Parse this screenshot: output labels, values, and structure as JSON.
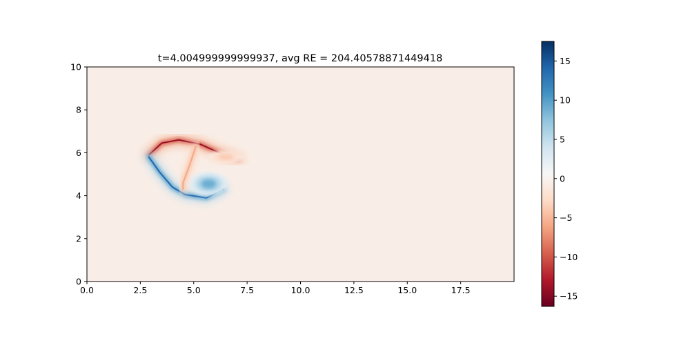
{
  "chart_data": {
    "type": "heatmap",
    "title": "t=4.004999999999937, avg RE = 204.40578871449418",
    "xlabel": "",
    "ylabel": "",
    "xlim": [
      0,
      20
    ],
    "ylim": [
      0,
      10
    ],
    "xticks": [
      0.0,
      2.5,
      5.0,
      7.5,
      10.0,
      12.5,
      15.0,
      17.5
    ],
    "xtick_labels": [
      "0.0",
      "2.5",
      "5.0",
      "7.5",
      "10.0",
      "12.5",
      "15.0",
      "17.5"
    ],
    "yticks": [
      0,
      2,
      4,
      6,
      8,
      10
    ],
    "ytick_labels": [
      "0",
      "2",
      "4",
      "6",
      "8",
      "10"
    ],
    "colormap": "RdBu",
    "color_min": -16.3,
    "color_max": 17.5,
    "colorbar_ticks": [
      -15,
      -10,
      -5,
      0,
      5,
      10,
      15
    ],
    "colorbar_tick_labels": [
      "−15",
      "−10",
      "−5",
      "0",
      "5",
      "10",
      "15"
    ],
    "background_value": -0.5,
    "features": [
      {
        "name": "upper-shear-layer",
        "shape": "arc-band",
        "value": -14,
        "points": [
          [
            2.9,
            5.9
          ],
          [
            3.5,
            6.45
          ],
          [
            4.3,
            6.6
          ],
          [
            5.3,
            6.4
          ],
          [
            6.2,
            6.0
          ],
          [
            7.1,
            5.7
          ]
        ]
      },
      {
        "name": "lower-shear-layer",
        "shape": "arc-band",
        "value": 14,
        "points": [
          [
            2.9,
            5.8
          ],
          [
            3.4,
            5.1
          ],
          [
            4.0,
            4.4
          ],
          [
            4.6,
            4.05
          ],
          [
            5.6,
            3.9
          ],
          [
            6.4,
            4.3
          ]
        ]
      },
      {
        "name": "negative-wake-streak",
        "shape": "arc-band",
        "value": -6,
        "points": [
          [
            5.1,
            6.3
          ],
          [
            4.8,
            5.4
          ],
          [
            4.5,
            4.6
          ],
          [
            4.5,
            4.3
          ]
        ]
      },
      {
        "name": "positive-vortex",
        "shape": "blob",
        "value": 9,
        "center": [
          5.7,
          4.55
        ],
        "radius": [
          0.9,
          0.55
        ]
      },
      {
        "name": "negative-vortex-tail",
        "shape": "blob",
        "value": -4,
        "center": [
          6.5,
          5.8
        ],
        "radius": [
          0.9,
          0.3
        ]
      }
    ]
  }
}
